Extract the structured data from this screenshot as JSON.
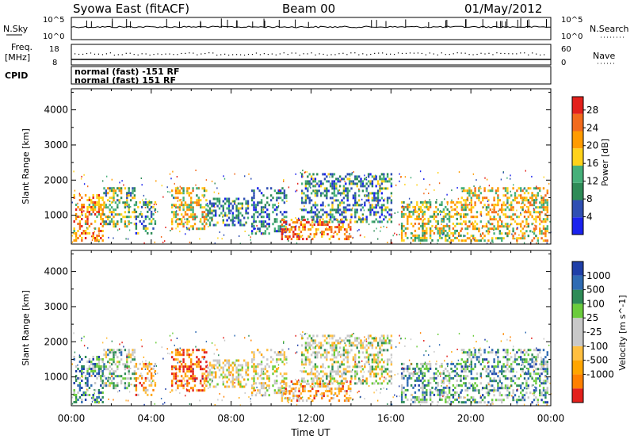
{
  "header": {
    "station": "Syowa East (fitACF)",
    "beam": "Beam 00",
    "date": "01/May/2012"
  },
  "top_panels": {
    "nsky": {
      "label": "N.Sky",
      "ticks": [
        "10^5",
        "10^0"
      ]
    },
    "nsearch": {
      "label": "N.Search",
      "ticks": [
        "10^5",
        "10^0"
      ]
    },
    "freq": {
      "label_line1": "Freq.",
      "label_line2": "[MHz]",
      "ticks": [
        "18",
        "8"
      ]
    },
    "nave": {
      "label": "Nave",
      "ticks": [
        "60",
        "0"
      ]
    },
    "cpid": {
      "label": "CPID",
      "entries": [
        "normal (fast) -151 RF",
        "normal (fast) 151 RF"
      ]
    }
  },
  "colors": {
    "power": [
      "#1a22ee",
      "#2f4fb3",
      "#2e8b57",
      "#46b07a",
      "#ffd21a",
      "#ff9b00",
      "#f26b1d",
      "#e3211c"
    ],
    "velocity": [
      "#e3211c",
      "#ff8000",
      "#ffa500",
      "#ffbf40",
      "#c8c8c8",
      "#c8c8c8",
      "#6bcc3c",
      "#2e8b57",
      "#2f6bb3",
      "#1f3fa8"
    ]
  },
  "chart_data": [
    {
      "type": "heatmap",
      "name": "power",
      "xlabel": "Time UT",
      "ylabel": "Slant Range [km]",
      "x_ticks": [
        "00:00",
        "04:00",
        "08:00",
        "12:00",
        "16:00",
        "20:00",
        "00:00"
      ],
      "x_range_hours": [
        0,
        24
      ],
      "ylim": [
        180,
        4600
      ],
      "y_ticks": [
        1000,
        2000,
        3000,
        4000
      ],
      "colorbar": {
        "label": "Power [dB]",
        "ticks": [
          4,
          8,
          12,
          16,
          20,
          24,
          28
        ],
        "range": [
          0,
          31
        ]
      },
      "echo_regions": [
        {
          "t0": 0.1,
          "t1": 1.6,
          "r0": 300,
          "r1": 1600,
          "level": 0.7
        },
        {
          "t0": 1.6,
          "t1": 3.2,
          "r0": 700,
          "r1": 1800,
          "level": 0.45
        },
        {
          "t0": 3.2,
          "t1": 4.2,
          "r0": 500,
          "r1": 1400,
          "level": 0.35
        },
        {
          "t0": 5.0,
          "t1": 6.8,
          "r0": 600,
          "r1": 1800,
          "level": 0.6
        },
        {
          "t0": 6.8,
          "t1": 8.8,
          "r0": 700,
          "r1": 1500,
          "level": 0.3
        },
        {
          "t0": 9.0,
          "t1": 10.8,
          "r0": 500,
          "r1": 1800,
          "level": 0.25
        },
        {
          "t0": 10.5,
          "t1": 14.0,
          "r0": 300,
          "r1": 900,
          "level": 0.8
        },
        {
          "t0": 11.5,
          "t1": 16.0,
          "r0": 800,
          "r1": 2200,
          "level": 0.3
        },
        {
          "t0": 16.5,
          "t1": 19.5,
          "r0": 300,
          "r1": 1400,
          "level": 0.55
        },
        {
          "t0": 19.5,
          "t1": 23.8,
          "r0": 300,
          "r1": 1800,
          "level": 0.6
        }
      ]
    },
    {
      "type": "heatmap",
      "name": "velocity",
      "xlabel": "Time UT",
      "ylabel": "Slant Range [km]",
      "x_ticks": [
        "00:00",
        "04:00",
        "08:00",
        "12:00",
        "16:00",
        "20:00",
        "00:00"
      ],
      "x_range_hours": [
        0,
        24
      ],
      "ylim": [
        180,
        4600
      ],
      "y_ticks": [
        1000,
        2000,
        3000,
        4000
      ],
      "colorbar": {
        "label": "Velocity [m s^-1]",
        "ticks": [
          "1000",
          "500",
          "100",
          "25",
          "-25",
          "-100",
          "-500",
          "-1000"
        ]
      },
      "echo_regions": [
        {
          "t0": 0.1,
          "t1": 1.6,
          "r0": 300,
          "r1": 1600,
          "level": 0.75
        },
        {
          "t0": 1.6,
          "t1": 3.2,
          "r0": 700,
          "r1": 1800,
          "level": 0.6
        },
        {
          "t0": 3.2,
          "t1": 4.2,
          "r0": 500,
          "r1": 1400,
          "level": 0.3
        },
        {
          "t0": 5.0,
          "t1": 6.8,
          "r0": 600,
          "r1": 1800,
          "level": 0.15
        },
        {
          "t0": 6.8,
          "t1": 8.8,
          "r0": 700,
          "r1": 1500,
          "level": 0.45
        },
        {
          "t0": 9.0,
          "t1": 10.8,
          "r0": 500,
          "r1": 1800,
          "level": 0.45
        },
        {
          "t0": 10.5,
          "t1": 14.0,
          "r0": 300,
          "r1": 900,
          "level": 0.3
        },
        {
          "t0": 11.5,
          "t1": 16.0,
          "r0": 800,
          "r1": 2200,
          "level": 0.5
        },
        {
          "t0": 16.5,
          "t1": 19.5,
          "r0": 300,
          "r1": 1400,
          "level": 0.7
        },
        {
          "t0": 19.5,
          "t1": 23.8,
          "r0": 300,
          "r1": 1800,
          "level": 0.7
        }
      ]
    }
  ]
}
